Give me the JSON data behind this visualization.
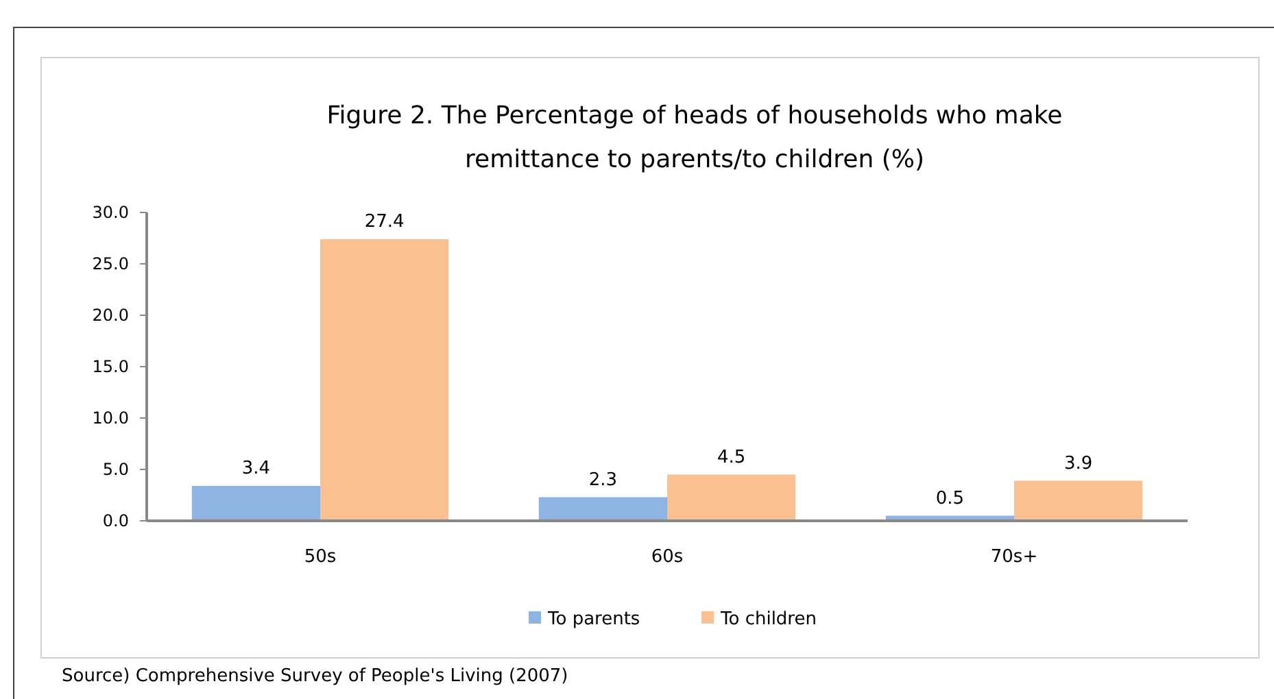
{
  "chart_data": {
    "type": "bar",
    "title": "Figure 2. The Percentage of heads of households who make remittance to parents/to children (%)",
    "categories": [
      "50s",
      "60s",
      "70s+"
    ],
    "series": [
      {
        "name": "To parents",
        "color": "#8db4e2",
        "values": [
          3.4,
          2.3,
          0.5
        ]
      },
      {
        "name": "To children",
        "color": "#fac08f",
        "values": [
          27.4,
          4.5,
          3.9
        ]
      }
    ],
    "ylim": [
      0,
      30
    ],
    "yticks": [
      {
        "value": 0,
        "label": "0.0"
      },
      {
        "value": 5,
        "label": "5.0"
      },
      {
        "value": 10,
        "label": "10.0"
      },
      {
        "value": 15,
        "label": "15.0"
      },
      {
        "value": 20,
        "label": "20.0"
      },
      {
        "value": 25,
        "label": "25.0"
      },
      {
        "value": 30,
        "label": "30.0"
      }
    ],
    "grid": false,
    "legend": "bottom",
    "data_labels": true,
    "annotations": [
      "Source)  Comprehensive Survey of People's Living (2007)"
    ]
  }
}
